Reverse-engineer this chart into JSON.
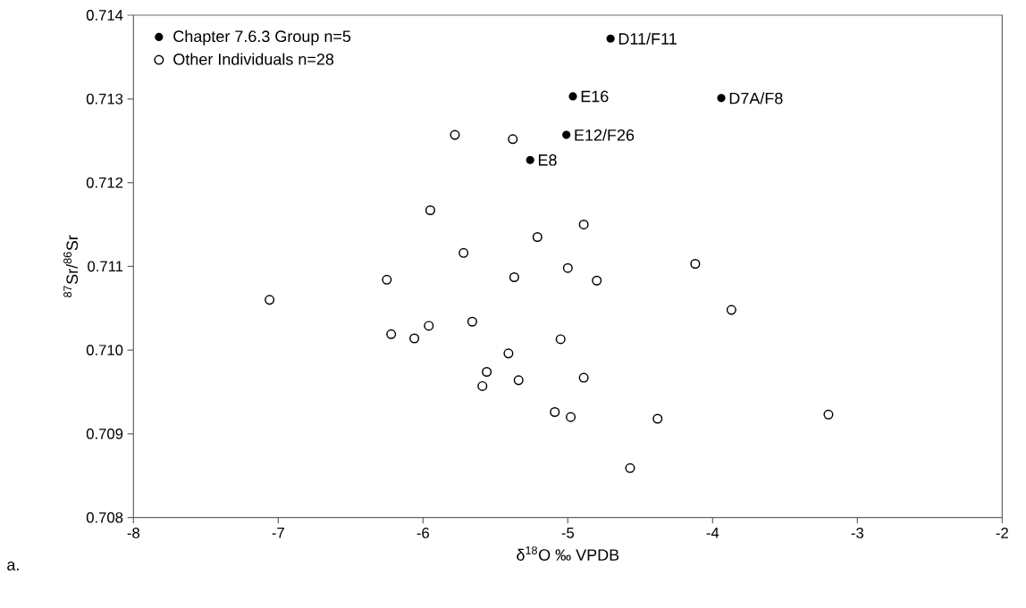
{
  "chart_data": {
    "type": "scatter",
    "xlabel": "δ$^{18}$O ‰ VPDB",
    "ylabel": "$^{87}$Sr/$^{86}$Sr",
    "xlim": [
      -8,
      -2
    ],
    "xticks": [
      -8,
      -7,
      -6,
      -5,
      -4,
      -3,
      -2
    ],
    "ylim": [
      0.708,
      0.714
    ],
    "yticks": [
      0.708,
      0.709,
      {
        "value": 0.71,
        "label": "0.710"
      },
      0.711,
      0.712,
      0.713,
      0.714
    ],
    "grid": false,
    "legend": "top left",
    "series": [
      {
        "name": "Chapter 7.6.3 Group  n=5",
        "color": "#000000",
        "x": [
          -4.705,
          -4.965,
          -3.94,
          -5.01,
          -5.26
        ],
        "values": [
          0.71372,
          0.71303,
          0.71301,
          0.71257,
          0.71227
        ]
      },
      {
        "name": "Other Individuals  n=28",
        "color": "#ffffff",
        "x": [
          -5.78,
          -5.38,
          -5.95,
          -5.21,
          -5.72,
          -6.25,
          -5.37,
          -5.0,
          -4.89,
          -4.12,
          -4.8,
          -7.06,
          -6.22,
          -6.06,
          -5.96,
          -5.66,
          -5.05,
          -5.41,
          -5.56,
          -5.59,
          -5.34,
          -5.09,
          -4.98,
          -4.89,
          -3.87,
          -4.38,
          -3.2,
          -4.57
        ],
        "values": [
          0.71257,
          0.71252,
          0.71167,
          0.71135,
          0.71116,
          0.71084,
          0.71087,
          0.71098,
          0.7115,
          0.71103,
          0.71083,
          0.7106,
          0.71019,
          0.71014,
          0.71029,
          0.71034,
          0.71013,
          0.70996,
          0.70974,
          0.70957,
          0.70964,
          0.70926,
          0.7092,
          0.70967,
          0.71048,
          0.70918,
          0.70923,
          0.70859
        ]
      }
    ],
    "annotations": [
      {
        "text": "D11/F11",
        "x": -4.705,
        "y": 0.71372
      },
      {
        "text": "E16",
        "x": -4.965,
        "y": 0.71303
      },
      {
        "text": "D7A/F8",
        "x": -3.94,
        "y": 0.71301
      },
      {
        "text": "E12/F26",
        "x": -5.01,
        "y": 0.71257
      },
      {
        "text": "E8",
        "x": -5.26,
        "y": 0.71227
      },
      "a."
    ]
  }
}
